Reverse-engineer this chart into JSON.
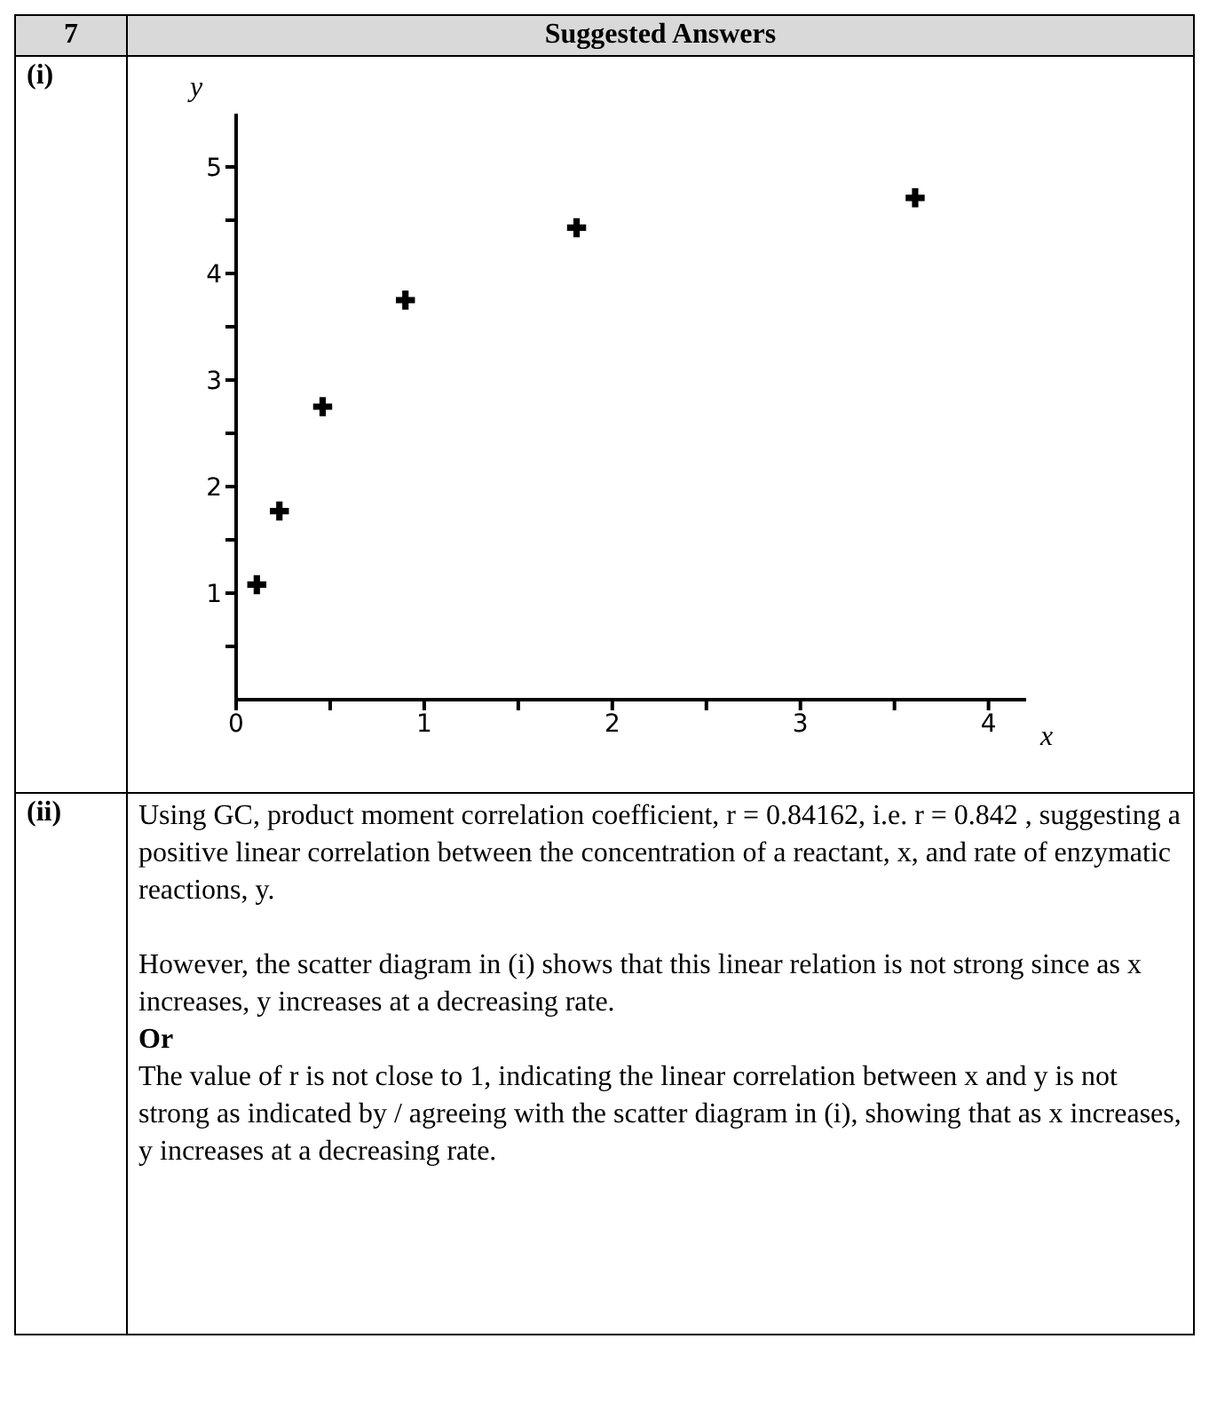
{
  "chart_data": {
    "type": "scatter",
    "title": "Suggested Answers",
    "xlabel": "x",
    "ylabel": "y",
    "x": [
      0.11,
      0.23,
      0.46,
      0.9,
      1.81,
      3.61
    ],
    "values": [
      1.08,
      1.77,
      2.75,
      3.75,
      4.43,
      4.71
    ],
    "color": "#000000",
    "marker": "cross",
    "xlim": [
      0,
      4.2
    ],
    "xticks": [
      0,
      {
        "value": 0.5,
        "label": null
      },
      1,
      {
        "value": 1.5,
        "label": null
      },
      2,
      {
        "value": 2.5,
        "label": null
      },
      3,
      {
        "value": 3.5,
        "label": null
      },
      4
    ],
    "ylim": [
      0,
      5.5
    ],
    "yticks": [
      {
        "value": 0.5,
        "label": null
      },
      1,
      {
        "value": 1.5,
        "label": null
      },
      2,
      {
        "value": 2.5,
        "label": null
      },
      3,
      {
        "value": 3.5,
        "label": null
      },
      4,
      {
        "value": 4.5,
        "label": null
      },
      5
    ],
    "annotations": [
      "7",
      "(i)",
      "(ii)",
      "Using GC, product moment correlation coefficient, r = 0.84162, i.e. r = 0.842 , suggesting a positive linear correlation between the concentration of a reactant, x, and rate of enzymatic reactions, y.",
      "However, the scatter diagram in (i) shows that this linear relation is not strong since as x increases, y increases at a decreasing rate.",
      "Or",
      "The value of r is not close to 1, indicating the linear correlation between x and y is not strong as indicated by / agreeing with the scatter diagram in (i), showing that as x increases, y increases at a decreasing rate."
    ]
  }
}
